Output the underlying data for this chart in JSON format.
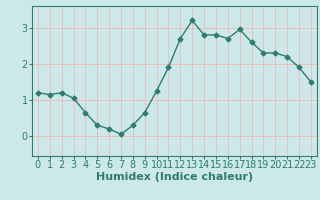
{
  "x": [
    0,
    1,
    2,
    3,
    4,
    5,
    6,
    7,
    8,
    9,
    10,
    11,
    12,
    13,
    14,
    15,
    16,
    17,
    18,
    19,
    20,
    21,
    22,
    23
  ],
  "y": [
    1.2,
    1.15,
    1.2,
    1.05,
    0.65,
    0.3,
    0.2,
    0.05,
    0.3,
    0.65,
    1.25,
    1.9,
    2.7,
    3.2,
    2.8,
    2.8,
    2.7,
    2.95,
    2.6,
    2.3,
    2.3,
    2.2,
    1.9,
    1.5
  ],
  "line_color": "#2e7d6e",
  "marker": "D",
  "marker_size": 2.5,
  "bg_color": "#cce8e8",
  "grid_color": "#f0b8b8",
  "xlabel": "Humidex (Indice chaleur)",
  "xlim": [
    -0.5,
    23.5
  ],
  "ylim": [
    -0.55,
    3.6
  ],
  "yticks": [
    0,
    1,
    2,
    3
  ],
  "xticks": [
    0,
    1,
    2,
    3,
    4,
    5,
    6,
    7,
    8,
    9,
    10,
    11,
    12,
    13,
    14,
    15,
    16,
    17,
    18,
    19,
    20,
    21,
    22,
    23
  ],
  "xlabel_fontsize": 8,
  "tick_fontsize": 7,
  "spine_color": "#2e7d6e",
  "tick_color": "#2e7d6e"
}
